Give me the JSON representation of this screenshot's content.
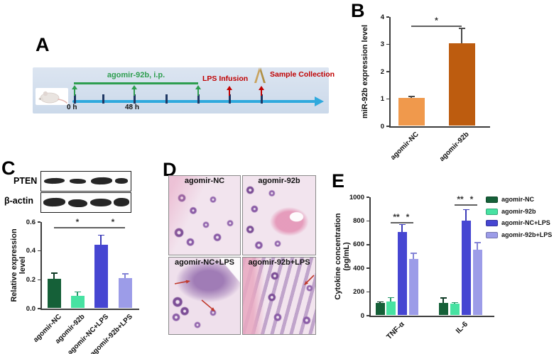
{
  "figure": {
    "panels": {
      "A": {
        "label": "A",
        "timeline": {
          "treatment": "agomir-92b, i.p.",
          "lps": "LPS Infusion",
          "sample": "Sample Collection",
          "tick0": "0 h",
          "tick48": "48 h"
        }
      },
      "B": {
        "label": "B"
      },
      "C": {
        "label": "C",
        "blots": {
          "row1": "PTEN",
          "row2": "β-actin"
        }
      },
      "D": {
        "label": "D",
        "tiles": [
          {
            "title": "agomir-NC"
          },
          {
            "title": "agomir-92b"
          },
          {
            "title": "agomir-NC+LPS"
          },
          {
            "title": "agomir-92b+LPS"
          }
        ]
      },
      "E": {
        "label": "E"
      }
    },
    "colors": {
      "timeline_arrow": "#2FA9DD",
      "timeline_tick": "#1F3864",
      "treatment_green": "#2E9E4F",
      "annotation_red": "#C00000",
      "panel_a_bg": "#D7E1EF"
    }
  },
  "chart_data": [
    {
      "panel": "B",
      "type": "bar",
      "title": "",
      "ylabel": "miR-92b expression level",
      "ylim": [
        0,
        4
      ],
      "yticks": [
        0,
        1,
        2,
        3,
        4
      ],
      "ytick_labels": [
        "0",
        "1",
        "2",
        "3",
        "4"
      ],
      "categories": [
        "agomir-NC",
        "agomir-92b"
      ],
      "values": [
        1.05,
        3.05
      ],
      "errors": [
        0.04,
        0.53
      ],
      "bar_colors": [
        "#F0994C",
        "#BD5C0F"
      ],
      "error_colors": [
        "#4a4a4a",
        "#4a4a4a"
      ],
      "grid": false,
      "significance": [
        {
          "from": 0,
          "to": 1,
          "label": "*"
        }
      ]
    },
    {
      "panel": "C",
      "type": "bar",
      "title": "",
      "ylabel": "Relative expression level",
      "ylim": [
        0,
        0.6
      ],
      "yticks": [
        0,
        0.2,
        0.4,
        0.6
      ],
      "ytick_labels": [
        "0.0",
        "0.2",
        "0.4",
        "0.6"
      ],
      "categories": [
        "agomir-NC",
        "agomir-92b",
        "agomir-NC+LPS",
        "agomir-92b+LPS"
      ],
      "values": [
        0.205,
        0.09,
        0.445,
        0.21
      ],
      "errors": [
        0.04,
        0.025,
        0.065,
        0.03
      ],
      "bar_colors": [
        "#156038",
        "#47E2A2",
        "#4646D2",
        "#9C9CE8"
      ],
      "error_colors": [
        "#0E3B25",
        "#27996C",
        "#3C3CB8",
        "#8484D6"
      ],
      "grid": false,
      "significance": [
        {
          "from": 0,
          "to": 2,
          "label": "*"
        },
        {
          "from": 2,
          "to": 3,
          "label": "*"
        }
      ]
    },
    {
      "panel": "E",
      "type": "bar",
      "title": "",
      "ylabel_lines": [
        "Cytokine concentration",
        "(pg/mL)"
      ],
      "ylim": [
        0,
        1000
      ],
      "yticks": [
        0,
        200,
        400,
        600,
        800,
        1000
      ],
      "ytick_labels": [
        "0",
        "200",
        "400",
        "600",
        "800",
        "1000"
      ],
      "categories": [
        "TNF-α",
        "IL-6"
      ],
      "series": [
        {
          "name": "agomir-NC",
          "color": "#156038",
          "error_color": "#0E3B25",
          "values": [
            105,
            110
          ],
          "errors": [
            12,
            40
          ]
        },
        {
          "name": "agomir-92b",
          "color": "#47E2A2",
          "error_color": "#27996C",
          "values": [
            122,
            100
          ],
          "errors": [
            30,
            12
          ]
        },
        {
          "name": "agomir-NC+LPS",
          "color": "#4646D2",
          "error_color": "#3C3CB8",
          "values": [
            705,
            805
          ],
          "errors": [
            65,
            90
          ]
        },
        {
          "name": "agomir-92b+LPS",
          "color": "#9C9CE8",
          "error_color": "#8484D6",
          "values": [
            478,
            555
          ],
          "errors": [
            48,
            62
          ]
        }
      ],
      "legend_position": "right",
      "grid": false,
      "significance": [
        {
          "category": "TNF-α",
          "from": 1,
          "to": 2,
          "label": "**"
        },
        {
          "category": "TNF-α",
          "from": 2,
          "to": 3,
          "label": "*"
        },
        {
          "category": "IL-6",
          "from": 1,
          "to": 2,
          "label": "**"
        },
        {
          "category": "IL-6",
          "from": 2,
          "to": 3,
          "label": "*"
        }
      ]
    }
  ]
}
